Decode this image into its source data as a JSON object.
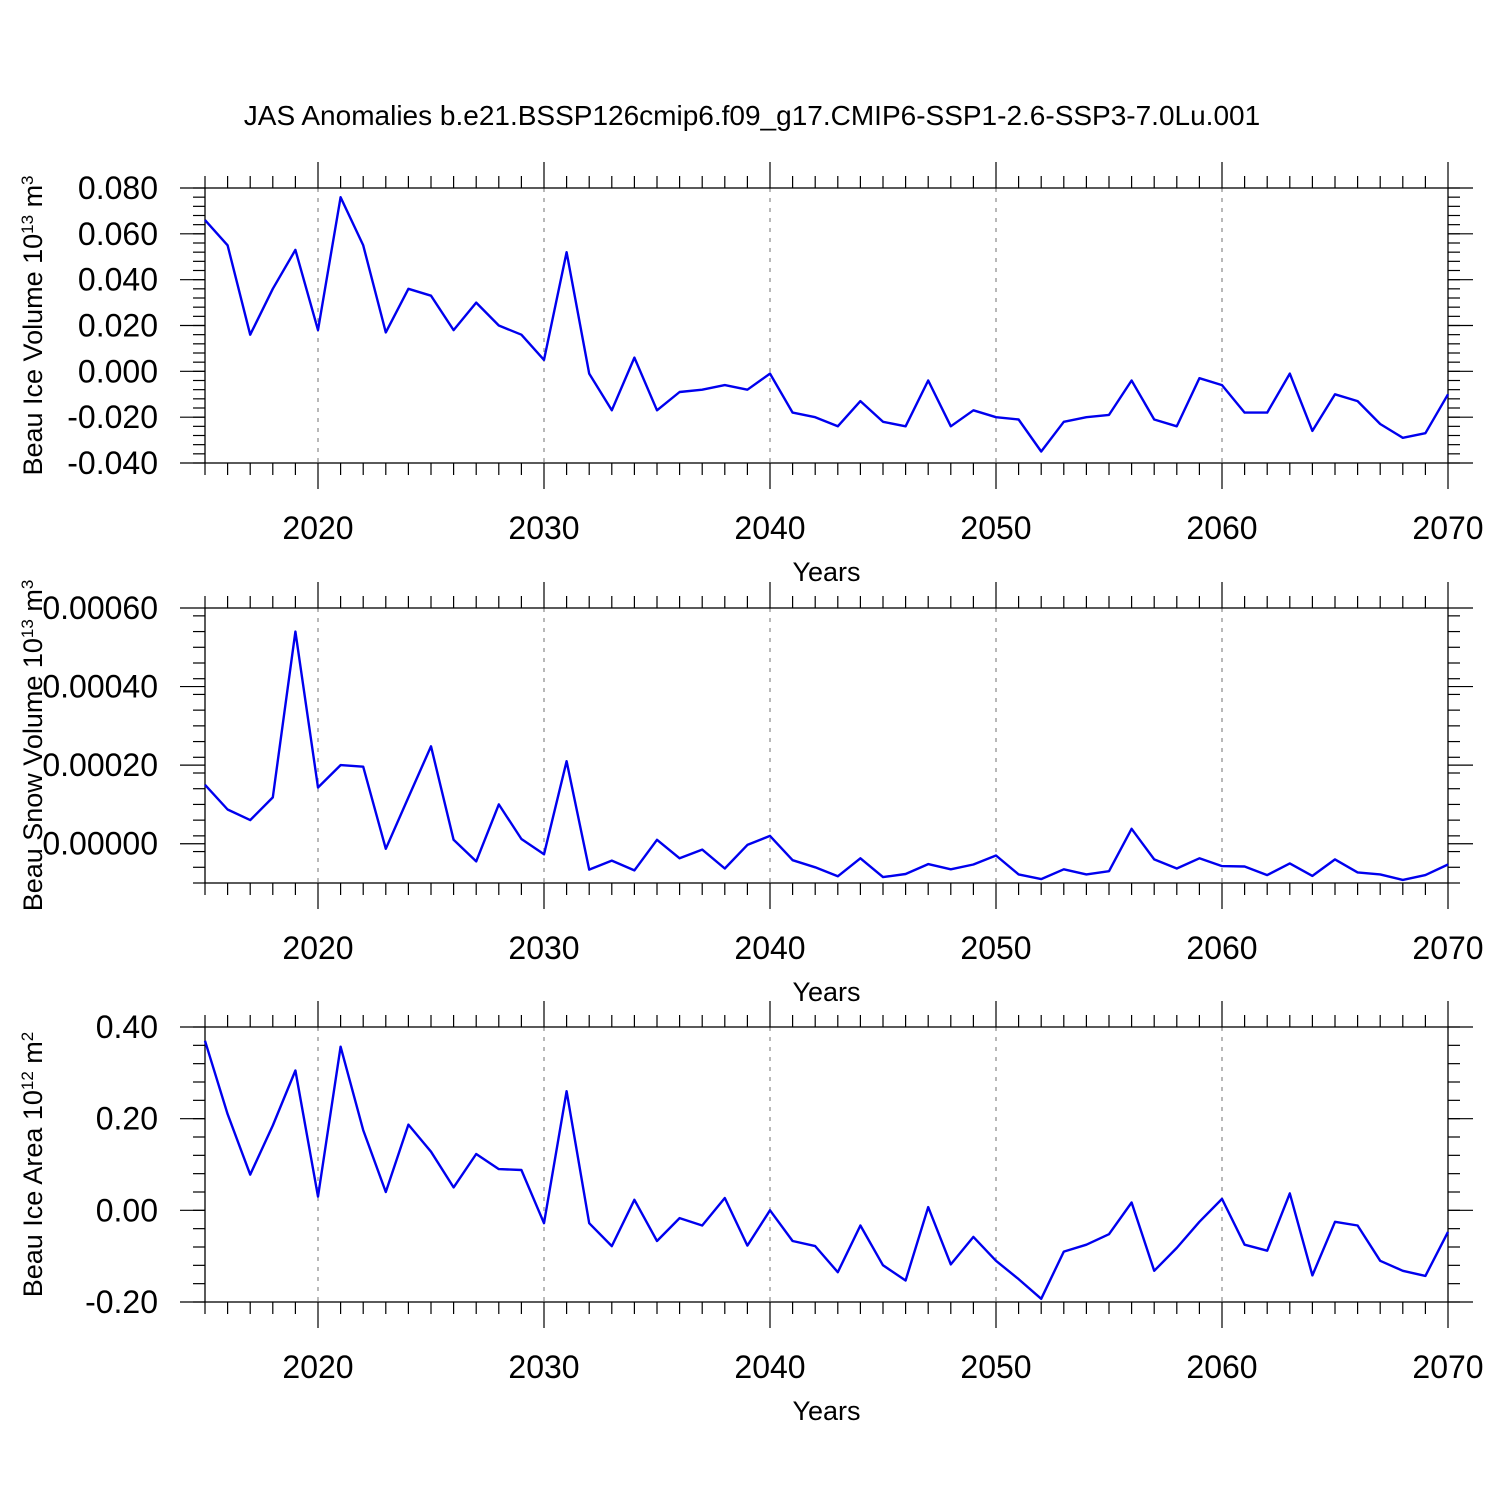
{
  "title": "JAS Anomalies b.e21.BSSP126cmip6.f09_g17.CMIP6-SSP1-2.6-SSP3-7.0Lu.001",
  "colors": {
    "line": "#0000ee",
    "grid": "#888888",
    "axis": "#000000"
  },
  "chart_data": [
    {
      "type": "line",
      "xlabel": "Years",
      "ylabel": "Beau Ice Volume 10",
      "ylabel_exp": "13",
      "ylabel_unit": " m",
      "ylabel_unit_exp": "3",
      "xlim": [
        2015,
        2070
      ],
      "ylim": [
        -0.04,
        0.08
      ],
      "yticks": [
        -0.04,
        -0.02,
        0.0,
        0.02,
        0.04,
        0.06,
        0.08
      ],
      "yticklabels": [
        "-0.040",
        "-0.020",
        "0.000",
        "0.020",
        "0.040",
        "0.060",
        "0.080"
      ],
      "xticks": [
        2020,
        2030,
        2040,
        2050,
        2060,
        2070
      ],
      "xticklabels": [
        "2020",
        "2030",
        "2040",
        "2050",
        "2060",
        "2070"
      ],
      "grid": "vertical dashed at major x ticks",
      "x": [
        2015,
        2016,
        2017,
        2018,
        2019,
        2020,
        2021,
        2022,
        2023,
        2024,
        2025,
        2026,
        2027,
        2028,
        2029,
        2030,
        2031,
        2032,
        2033,
        2034,
        2035,
        2036,
        2037,
        2038,
        2039,
        2040,
        2041,
        2042,
        2043,
        2044,
        2045,
        2046,
        2047,
        2048,
        2049,
        2050,
        2051,
        2052,
        2053,
        2054,
        2055,
        2056,
        2057,
        2058,
        2059,
        2060,
        2061,
        2062,
        2063,
        2064,
        2065,
        2066,
        2067,
        2068,
        2069,
        2070
      ],
      "series": [
        {
          "values": [
            0.066,
            0.055,
            0.016,
            0.036,
            0.053,
            0.018,
            0.076,
            0.055,
            0.017,
            0.036,
            0.033,
            0.018,
            0.03,
            0.02,
            0.016,
            0.005,
            0.052,
            -0.001,
            -0.017,
            0.006,
            -0.017,
            -0.009,
            -0.008,
            -0.006,
            -0.008,
            -0.001,
            -0.018,
            -0.02,
            -0.024,
            -0.013,
            -0.022,
            -0.024,
            -0.004,
            -0.024,
            -0.017,
            -0.02,
            -0.021,
            -0.035,
            -0.022,
            -0.02,
            -0.019,
            -0.004,
            -0.021,
            -0.024,
            -0.003,
            -0.006,
            -0.018,
            -0.018,
            -0.001,
            -0.026,
            -0.01,
            -0.013,
            -0.023,
            -0.029,
            -0.027,
            -0.01
          ]
        }
      ]
    },
    {
      "type": "line",
      "xlabel": "Years",
      "ylabel": "Beau Snow Volume 10",
      "ylabel_exp": "13",
      "ylabel_unit": " m",
      "ylabel_unit_exp": "3",
      "xlim": [
        2015,
        2070
      ],
      "ylim": [
        -0.0001,
        0.0006
      ],
      "yticks": [
        0.0,
        0.0002,
        0.0004,
        0.0006
      ],
      "yticklabels": [
        "0.00000",
        "0.00020",
        "0.00040",
        "0.00060"
      ],
      "xticks": [
        2020,
        2030,
        2040,
        2050,
        2060,
        2070
      ],
      "xticklabels": [
        "2020",
        "2030",
        "2040",
        "2050",
        "2060",
        "2070"
      ],
      "grid": "vertical dashed at major x ticks",
      "x": [
        2015,
        2016,
        2017,
        2018,
        2019,
        2020,
        2021,
        2022,
        2023,
        2024,
        2025,
        2026,
        2027,
        2028,
        2029,
        2030,
        2031,
        2032,
        2033,
        2034,
        2035,
        2036,
        2037,
        2038,
        2039,
        2040,
        2041,
        2042,
        2043,
        2044,
        2045,
        2046,
        2047,
        2048,
        2049,
        2050,
        2051,
        2052,
        2053,
        2054,
        2055,
        2056,
        2057,
        2058,
        2059,
        2060,
        2061,
        2062,
        2063,
        2064,
        2065,
        2066,
        2067,
        2068,
        2069,
        2070
      ],
      "series": [
        {
          "values": [
            0.00015,
            8.7e-05,
            6e-05,
            0.000118,
            0.00054,
            0.000143,
            0.0002,
            0.000196,
            -1.3e-05,
            0.000118,
            0.000248,
            1e-05,
            -4.5e-05,
            0.0001,
            1.2e-05,
            -2.7e-05,
            0.00021,
            -6.6e-05,
            -4.3e-05,
            -6.8e-05,
            1e-05,
            -3.7e-05,
            -1.5e-05,
            -6.3e-05,
            -3e-06,
            2e-05,
            -4.2e-05,
            -6e-05,
            -8.3e-05,
            -3.7e-05,
            -8.5e-05,
            -7.7e-05,
            -5.2e-05,
            -6.5e-05,
            -5.3e-05,
            -3e-05,
            -7.8e-05,
            -9e-05,
            -6.5e-05,
            -7.8e-05,
            -7e-05,
            3.8e-05,
            -4e-05,
            -6.3e-05,
            -3.7e-05,
            -5.7e-05,
            -5.8e-05,
            -8e-05,
            -5e-05,
            -8.2e-05,
            -4e-05,
            -7.3e-05,
            -7.8e-05,
            -9.2e-05,
            -8e-05,
            -5.3e-05
          ]
        }
      ]
    },
    {
      "type": "line",
      "xlabel": "Years",
      "ylabel": "Beau Ice Area 10",
      "ylabel_exp": "12",
      "ylabel_unit": " m",
      "ylabel_unit_exp": "2",
      "xlim": [
        2015,
        2070
      ],
      "ylim": [
        -0.2,
        0.4
      ],
      "yticks": [
        -0.2,
        0.0,
        0.2,
        0.4
      ],
      "yticklabels": [
        "-0.20",
        "0.00",
        "0.20",
        "0.40"
      ],
      "xticks": [
        2020,
        2030,
        2040,
        2050,
        2060,
        2070
      ],
      "xticklabels": [
        "2020",
        "2030",
        "2040",
        "2050",
        "2060",
        "2070"
      ],
      "grid": "vertical dashed at major x ticks",
      "x": [
        2015,
        2016,
        2017,
        2018,
        2019,
        2020,
        2021,
        2022,
        2023,
        2024,
        2025,
        2026,
        2027,
        2028,
        2029,
        2030,
        2031,
        2032,
        2033,
        2034,
        2035,
        2036,
        2037,
        2038,
        2039,
        2040,
        2041,
        2042,
        2043,
        2044,
        2045,
        2046,
        2047,
        2048,
        2049,
        2050,
        2051,
        2052,
        2053,
        2054,
        2055,
        2056,
        2057,
        2058,
        2059,
        2060,
        2061,
        2062,
        2063,
        2064,
        2065,
        2066,
        2067,
        2068,
        2069,
        2070
      ],
      "series": [
        {
          "values": [
            0.37,
            0.21,
            0.078,
            0.185,
            0.305,
            0.03,
            0.357,
            0.175,
            0.04,
            0.187,
            0.128,
            0.05,
            0.123,
            0.09,
            0.088,
            -0.028,
            0.26,
            -0.028,
            -0.078,
            0.023,
            -0.067,
            -0.017,
            -0.033,
            0.027,
            -0.077,
            0.0,
            -0.067,
            -0.078,
            -0.135,
            -0.033,
            -0.12,
            -0.153,
            0.007,
            -0.118,
            -0.058,
            -0.11,
            -0.15,
            -0.193,
            -0.09,
            -0.075,
            -0.052,
            0.017,
            -0.132,
            -0.082,
            -0.025,
            0.025,
            -0.075,
            -0.088,
            0.037,
            -0.142,
            -0.025,
            -0.033,
            -0.11,
            -0.132,
            -0.143,
            -0.047
          ]
        }
      ]
    }
  ]
}
